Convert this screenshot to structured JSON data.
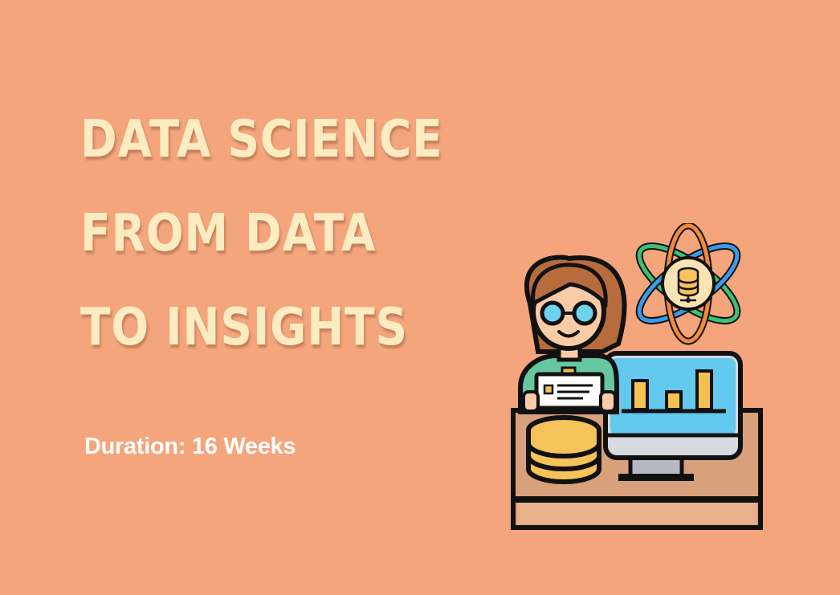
{
  "title": {
    "line1": "DATA SCIENCE",
    "line2": "FROM DATA",
    "line3": "TO INSIGHTS"
  },
  "subtitle": "Duration: 16 Weeks",
  "colors": {
    "background": "#F4A57B",
    "title_text": "#FDEBC2",
    "subtitle_text": "#FFFFFF",
    "outline": "#111111",
    "skin": "#F9CBA7",
    "hair": "#B86C3E",
    "shirt": "#67C7A0",
    "glasses_lens": "#6FD3F0",
    "monitor_screen": "#63C9EE",
    "chart_bars": "#F5C153",
    "desk_top": "#D9A07C",
    "database": "#F6C25A",
    "atom_orbit_green": "#3FBF73",
    "atom_orbit_orange": "#F28A3C",
    "atom_orbit_blue": "#3C9AE8",
    "atom_core": "#FCE3B4"
  },
  "illustration": {
    "icons": [
      "data-scientist-icon",
      "glasses-icon",
      "monitor-icon",
      "bar-chart-icon",
      "database-icon",
      "atom-icon"
    ]
  }
}
